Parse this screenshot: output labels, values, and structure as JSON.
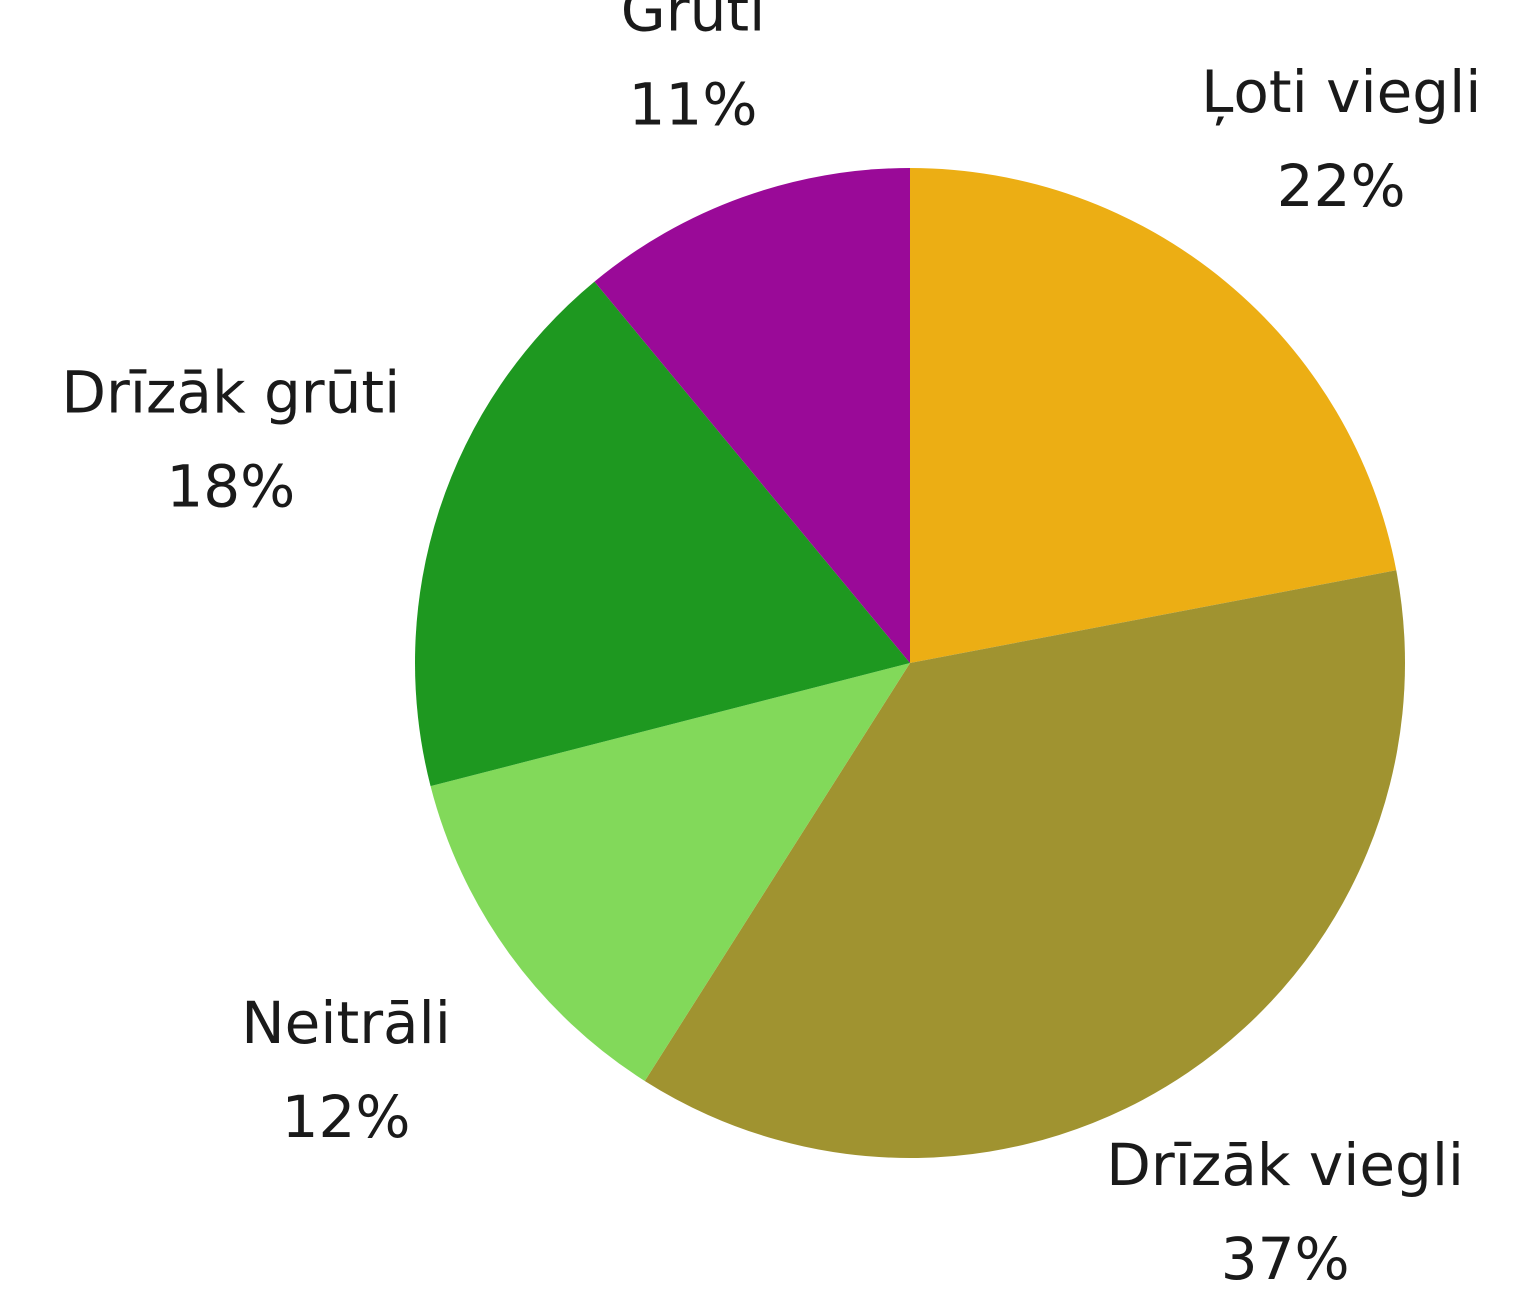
{
  "chart_data": {
    "type": "pie",
    "categories": [
      "Ļoti viegli",
      "Drīzāk viegli",
      "Neitrāli",
      "Drīzāk grūti",
      "Grūti"
    ],
    "values": [
      22,
      37,
      12,
      18,
      11
    ],
    "value_labels": [
      "22%",
      "37%",
      "12%",
      "18%",
      "11%"
    ],
    "colors": [
      "#ecae14",
      "#a09330",
      "#82d95a",
      "#1e9820",
      "#9a0a98"
    ]
  }
}
